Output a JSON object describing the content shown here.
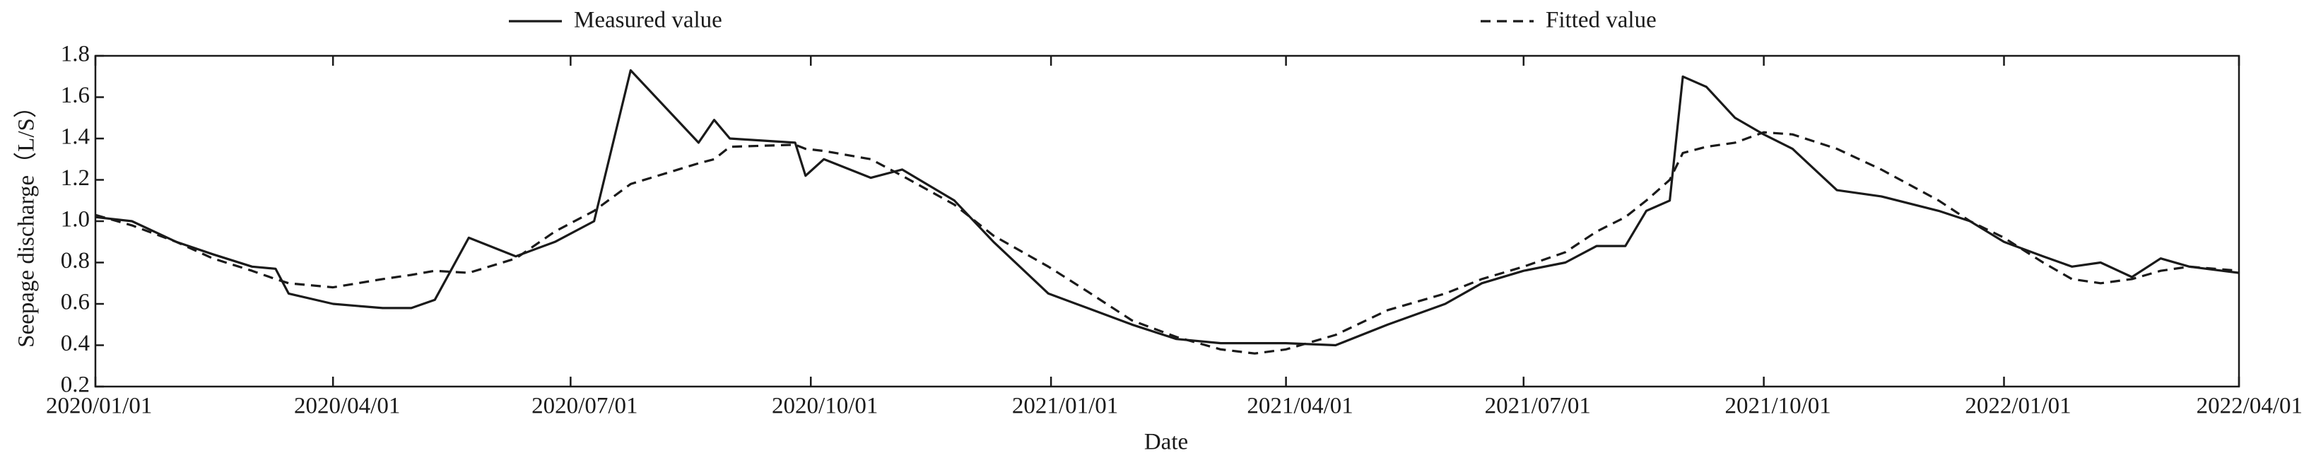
{
  "chart_data": {
    "type": "line",
    "x_label": "Date",
    "y_label": "Seepage discharge（L/S）",
    "x": [
      "2020/01/01",
      "2020/01/15",
      "2020/02/01",
      "2020/02/15",
      "2020/03/01",
      "2020/03/10",
      "2020/03/15",
      "2020/04/01",
      "2020/04/20",
      "2020/05/01",
      "2020/05/10",
      "2020/05/23",
      "2020/06/10",
      "2020/06/25",
      "2020/07/10",
      "2020/07/24",
      "2020/08/19",
      "2020/08/25",
      "2020/08/31",
      "2020/09/25",
      "2020/09/29",
      "2020/10/06",
      "2020/10/24",
      "2020/11/05",
      "2020/11/25",
      "2020/12/10",
      "2020/12/31",
      "2021/01/15",
      "2021/02/01",
      "2021/02/18",
      "2021/03/07",
      "2021/03/20",
      "2021/04/01",
      "2021/04/20",
      "2021/05/10",
      "2021/06/01",
      "2021/06/15",
      "2021/07/01",
      "2021/07/17",
      "2021/07/29",
      "2021/08/09",
      "2021/08/17",
      "2021/08/26",
      "2021/08/31",
      "2021/09/09",
      "2021/09/20",
      "2021/10/01",
      "2021/10/12",
      "2021/10/29",
      "2021/11/15",
      "2021/12/07",
      "2021/12/19",
      "2022/01/01",
      "2022/01/16",
      "2022/01/27",
      "2022/02/07",
      "2022/02/19",
      "2022/03/02",
      "2022/03/13",
      "2022/04/01"
    ],
    "series": [
      {
        "name": "Measured value",
        "color": "#1a1a1a",
        "dash": false,
        "values": [
          1.02,
          1.0,
          0.9,
          0.84,
          0.78,
          0.77,
          0.65,
          0.6,
          0.58,
          0.58,
          0.62,
          0.92,
          0.83,
          0.9,
          1.0,
          1.73,
          1.38,
          1.49,
          1.4,
          1.38,
          1.22,
          1.3,
          1.21,
          1.25,
          1.1,
          0.9,
          0.65,
          0.58,
          0.5,
          0.43,
          0.41,
          0.41,
          0.41,
          0.4,
          0.5,
          0.6,
          0.7,
          0.76,
          0.8,
          0.88,
          0.88,
          1.05,
          1.1,
          1.7,
          1.65,
          1.5,
          1.42,
          1.35,
          1.15,
          1.12,
          1.05,
          1.0,
          0.9,
          0.83,
          0.78,
          0.8,
          0.73,
          0.82,
          0.78,
          0.75
        ]
      },
      {
        "name": "Fitted value",
        "color": "#1a1a1a",
        "dash": true,
        "values": [
          1.03,
          0.98,
          0.9,
          0.82,
          0.76,
          0.72,
          0.7,
          0.68,
          0.72,
          0.74,
          0.76,
          0.75,
          0.82,
          0.95,
          1.05,
          1.18,
          1.28,
          1.3,
          1.36,
          1.37,
          1.35,
          1.34,
          1.3,
          1.22,
          1.08,
          0.93,
          0.78,
          0.66,
          0.52,
          0.44,
          0.38,
          0.36,
          0.38,
          0.45,
          0.57,
          0.65,
          0.72,
          0.78,
          0.85,
          0.95,
          1.02,
          1.1,
          1.2,
          1.33,
          1.36,
          1.38,
          1.43,
          1.42,
          1.35,
          1.25,
          1.1,
          1.0,
          0.92,
          0.8,
          0.72,
          0.7,
          0.72,
          0.76,
          0.78,
          0.76
        ]
      }
    ],
    "xlim": [
      "2020/01/01",
      "2022/04/01"
    ],
    "xticks": [
      "2020/01/01",
      "2020/04/01",
      "2020/07/01",
      "2020/10/01",
      "2021/01/01",
      "2021/04/01",
      "2021/07/01",
      "2021/10/01",
      "2022/01/01",
      "2022/04/01"
    ],
    "ylim": [
      0.2,
      1.8
    ],
    "yticks": [
      0.2,
      0.4,
      0.6,
      0.8,
      {
        "value": 1,
        "label": "1.0"
      },
      1.2,
      1.4,
      1.6,
      1.8
    ],
    "grid": false
  }
}
